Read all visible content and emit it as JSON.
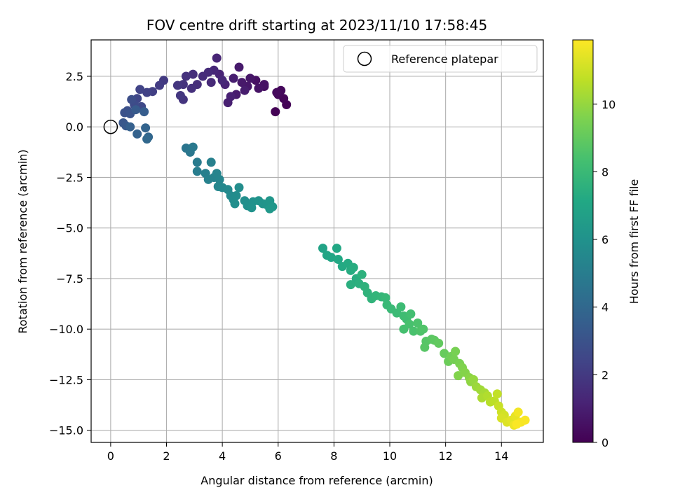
{
  "chart_data": {
    "type": "scatter",
    "title": "FOV centre drift starting at 2023/11/10 17:58:45",
    "xlabel": "Angular distance from reference (arcmin)",
    "ylabel": "Rotation from reference (arcmin)",
    "colorbar_label": "Hours from first FF file",
    "xlim": [
      -0.7,
      15.5
    ],
    "ylim": [
      -15.6,
      4.3
    ],
    "xticks": [
      0,
      2,
      4,
      6,
      8,
      10,
      12,
      14
    ],
    "xtick_labels": [
      "0",
      "2",
      "4",
      "6",
      "8",
      "10",
      "12",
      "14"
    ],
    "yticks": [
      2.5,
      0.0,
      -2.5,
      -5.0,
      -7.5,
      -10.0,
      -12.5,
      -15.0
    ],
    "ytick_labels": [
      "2.5",
      "0.0",
      "−2.5",
      "−5.0",
      "−7.5",
      "−10.0",
      "−12.5",
      "−15.0"
    ],
    "colorbar_ticks": [
      0,
      2,
      4,
      6,
      8,
      10
    ],
    "colorbar_tick_labels": [
      "0",
      "2",
      "4",
      "6",
      "8",
      "10"
    ],
    "colorbar_range": [
      0,
      11.9
    ],
    "colormap": "viridis",
    "grid": true,
    "legend": {
      "position": "top-right",
      "entries": [
        "Reference platepar"
      ]
    },
    "reference_point": {
      "x": 0,
      "y": 0,
      "label": "Reference platepar"
    },
    "series": [
      {
        "points": [
          [
            5.9,
            0.75,
            0.05
          ],
          [
            6.3,
            1.1,
            0.1
          ],
          [
            6.2,
            1.4,
            0.15
          ],
          [
            6.0,
            1.6,
            0.2
          ],
          [
            6.1,
            1.8,
            0.25
          ],
          [
            5.95,
            1.7,
            0.3
          ],
          [
            5.5,
            2.0,
            0.4
          ],
          [
            5.2,
            2.3,
            0.5
          ],
          [
            5.5,
            2.1,
            0.55
          ],
          [
            5.3,
            1.9,
            0.6
          ],
          [
            5.0,
            2.4,
            0.7
          ],
          [
            4.9,
            2.0,
            0.75
          ],
          [
            4.7,
            2.2,
            0.8
          ],
          [
            4.6,
            2.95,
            0.85
          ],
          [
            4.5,
            1.6,
            0.9
          ],
          [
            4.8,
            1.8,
            0.95
          ],
          [
            4.4,
            2.4,
            1.0
          ],
          [
            4.2,
            1.2,
            1.05
          ],
          [
            4.3,
            1.5,
            1.1
          ],
          [
            4.1,
            2.1,
            1.15
          ],
          [
            3.9,
            2.6,
            1.2
          ],
          [
            3.8,
            3.4,
            1.25
          ],
          [
            3.7,
            2.8,
            1.3
          ],
          [
            4.0,
            2.3,
            1.35
          ],
          [
            3.6,
            2.2,
            1.4
          ],
          [
            3.5,
            2.7,
            1.45
          ],
          [
            3.3,
            2.5,
            1.5
          ],
          [
            3.1,
            2.1,
            1.55
          ],
          [
            2.95,
            2.6,
            1.6
          ],
          [
            2.9,
            1.9,
            1.65
          ],
          [
            2.7,
            2.5,
            1.7
          ],
          [
            2.6,
            2.1,
            1.75
          ],
          [
            2.6,
            1.35,
            1.8
          ],
          [
            2.4,
            2.05,
            1.85
          ],
          [
            2.5,
            1.55,
            1.9
          ],
          [
            1.9,
            2.3,
            2.0
          ],
          [
            1.75,
            2.05,
            2.1
          ],
          [
            1.5,
            1.75,
            2.2
          ],
          [
            1.3,
            1.7,
            2.3
          ],
          [
            1.05,
            1.85,
            2.4
          ],
          [
            0.95,
            1.4,
            2.5
          ],
          [
            1.1,
            1.0,
            2.6
          ],
          [
            0.85,
            1.1,
            2.7
          ],
          [
            0.75,
            1.35,
            2.8
          ],
          [
            0.6,
            0.8,
            2.9
          ],
          [
            0.5,
            0.7,
            3.0
          ],
          [
            0.7,
            0.65,
            3.1
          ],
          [
            0.45,
            0.2,
            3.2
          ],
          [
            0.55,
            0.05,
            3.3
          ],
          [
            0.9,
            0.85,
            3.4
          ],
          [
            1.2,
            0.75,
            3.5
          ],
          [
            0.7,
            0.0,
            3.6
          ],
          [
            0.95,
            -0.35,
            3.7
          ],
          [
            1.25,
            -0.05,
            3.8
          ],
          [
            1.35,
            -0.5,
            3.9
          ],
          [
            1.3,
            -0.6,
            4.0
          ],
          [
            2.7,
            -1.05,
            4.6
          ],
          [
            2.85,
            -1.25,
            4.7
          ],
          [
            2.95,
            -1.0,
            4.8
          ],
          [
            3.1,
            -1.75,
            4.9
          ],
          [
            3.1,
            -2.2,
            5.0
          ],
          [
            3.4,
            -2.3,
            5.1
          ],
          [
            3.6,
            -1.75,
            5.15
          ],
          [
            3.5,
            -2.6,
            5.2
          ],
          [
            3.7,
            -2.5,
            5.3
          ],
          [
            3.8,
            -2.3,
            5.35
          ],
          [
            3.9,
            -2.6,
            5.4
          ],
          [
            3.85,
            -2.95,
            5.45
          ],
          [
            4.0,
            -3.0,
            5.5
          ],
          [
            4.2,
            -3.1,
            5.55
          ],
          [
            4.3,
            -3.4,
            5.6
          ],
          [
            4.4,
            -3.6,
            5.65
          ],
          [
            4.5,
            -3.4,
            5.7
          ],
          [
            4.6,
            -3.0,
            5.75
          ],
          [
            4.45,
            -3.8,
            5.8
          ],
          [
            4.8,
            -3.65,
            5.85
          ],
          [
            4.9,
            -3.9,
            5.9
          ],
          [
            5.1,
            -3.7,
            5.95
          ],
          [
            5.05,
            -4.0,
            6.0
          ],
          [
            5.3,
            -3.65,
            6.05
          ],
          [
            5.45,
            -3.8,
            6.1
          ],
          [
            5.6,
            -3.85,
            6.15
          ],
          [
            5.7,
            -3.65,
            6.2
          ],
          [
            5.8,
            -3.95,
            6.25
          ],
          [
            5.7,
            -4.05,
            6.3
          ],
          [
            7.6,
            -6.0,
            6.9
          ],
          [
            7.75,
            -6.35,
            7.0
          ],
          [
            7.9,
            -6.45,
            7.05
          ],
          [
            8.1,
            -6.0,
            7.1
          ],
          [
            8.15,
            -6.55,
            7.15
          ],
          [
            8.3,
            -6.9,
            7.2
          ],
          [
            8.5,
            -6.75,
            7.25
          ],
          [
            8.6,
            -7.1,
            7.3
          ],
          [
            8.7,
            -6.95,
            7.35
          ],
          [
            8.8,
            -7.5,
            7.4
          ],
          [
            8.6,
            -7.8,
            7.45
          ],
          [
            8.9,
            -7.75,
            7.5
          ],
          [
            9.0,
            -7.3,
            7.55
          ],
          [
            9.1,
            -7.9,
            7.6
          ],
          [
            9.2,
            -8.2,
            7.65
          ],
          [
            9.35,
            -8.5,
            7.7
          ],
          [
            9.5,
            -8.35,
            7.75
          ],
          [
            9.7,
            -8.4,
            7.8
          ],
          [
            9.85,
            -8.45,
            7.9
          ],
          [
            9.9,
            -8.8,
            7.95
          ],
          [
            10.05,
            -9.0,
            8.0
          ],
          [
            10.25,
            -9.2,
            8.05
          ],
          [
            10.4,
            -8.9,
            8.1
          ],
          [
            10.5,
            -9.35,
            8.15
          ],
          [
            10.6,
            -9.5,
            8.2
          ],
          [
            10.75,
            -9.25,
            8.3
          ],
          [
            10.5,
            -10.0,
            8.35
          ],
          [
            10.7,
            -9.75,
            8.4
          ],
          [
            10.85,
            -10.1,
            8.45
          ],
          [
            11.0,
            -9.7,
            8.5
          ],
          [
            11.1,
            -10.1,
            8.55
          ],
          [
            11.2,
            -10.0,
            8.6
          ],
          [
            11.3,
            -10.6,
            8.7
          ],
          [
            11.25,
            -10.9,
            8.75
          ],
          [
            11.5,
            -10.5,
            8.8
          ],
          [
            11.6,
            -10.55,
            8.9
          ],
          [
            11.75,
            -10.7,
            9.0
          ],
          [
            11.95,
            -11.2,
            9.1
          ],
          [
            12.1,
            -11.6,
            9.2
          ],
          [
            12.2,
            -11.35,
            9.3
          ],
          [
            12.3,
            -11.5,
            9.4
          ],
          [
            12.35,
            -11.1,
            9.45
          ],
          [
            12.5,
            -11.7,
            9.5
          ],
          [
            12.6,
            -11.9,
            9.6
          ],
          [
            12.45,
            -12.3,
            9.65
          ],
          [
            12.7,
            -12.15,
            9.7
          ],
          [
            12.85,
            -12.4,
            9.8
          ],
          [
            12.9,
            -12.6,
            9.9
          ],
          [
            13.0,
            -12.5,
            10.0
          ],
          [
            13.1,
            -12.85,
            10.1
          ],
          [
            13.25,
            -13.0,
            10.2
          ],
          [
            13.4,
            -13.15,
            10.3
          ],
          [
            13.3,
            -13.4,
            10.4
          ],
          [
            13.5,
            -13.3,
            10.5
          ],
          [
            13.6,
            -13.6,
            10.6
          ],
          [
            13.75,
            -13.55,
            10.7
          ],
          [
            13.85,
            -13.2,
            10.8
          ],
          [
            13.9,
            -13.8,
            10.9
          ],
          [
            14.0,
            -14.1,
            11.0
          ],
          [
            14.1,
            -14.25,
            11.1
          ],
          [
            14.0,
            -14.4,
            11.2
          ],
          [
            14.2,
            -14.6,
            11.3
          ],
          [
            14.35,
            -14.5,
            11.4
          ],
          [
            14.5,
            -14.3,
            11.5
          ],
          [
            14.45,
            -14.75,
            11.6
          ],
          [
            14.6,
            -14.1,
            11.7
          ],
          [
            14.7,
            -14.6,
            11.75
          ],
          [
            14.85,
            -14.5,
            11.8
          ],
          [
            14.55,
            -14.7,
            11.85
          ]
        ]
      }
    ]
  }
}
